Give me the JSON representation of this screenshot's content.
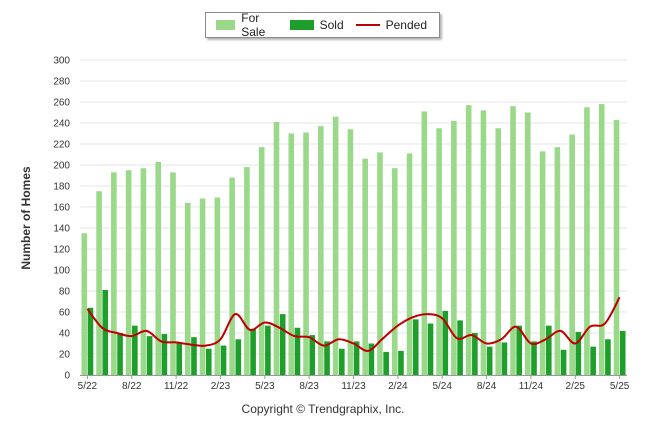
{
  "legend": {
    "for_sale": "For Sale",
    "sold": "Sold",
    "pended": "Pended"
  },
  "colors": {
    "for_sale": "#9ad98a",
    "sold": "#1e9e2a",
    "pended": "#c00000",
    "grid": "#e6e6e6",
    "axis_text": "#333333"
  },
  "ylabel": "Number of Homes",
  "copyright": "Copyright © Trendgraphix, Inc.",
  "chart_data": {
    "type": "bar",
    "title": "",
    "xlabel": "",
    "ylabel": "Number of Homes",
    "ylim": [
      0,
      300
    ],
    "yticks": [
      0,
      20,
      40,
      60,
      80,
      100,
      120,
      140,
      160,
      180,
      200,
      220,
      240,
      260,
      280,
      300
    ],
    "grid": true,
    "legend_position": "top-center",
    "categories": [
      "5/22",
      "6/22",
      "7/22",
      "8/22",
      "9/22",
      "10/22",
      "11/22",
      "12/22",
      "1/23",
      "2/23",
      "3/23",
      "4/23",
      "5/23",
      "6/23",
      "7/23",
      "8/23",
      "9/23",
      "10/23",
      "11/23",
      "12/23",
      "1/24",
      "2/24",
      "3/24",
      "4/24",
      "5/24",
      "6/24",
      "7/24",
      "8/24",
      "9/24",
      "10/24",
      "11/24",
      "12/24",
      "1/25",
      "2/25",
      "3/25",
      "4/25",
      "5/25"
    ],
    "tick_labels": [
      "5/22",
      "",
      "",
      "8/22",
      "",
      "",
      "11/22",
      "",
      "",
      "2/23",
      "",
      "",
      "5/23",
      "",
      "",
      "8/23",
      "",
      "",
      "11/23",
      "",
      "",
      "2/24",
      "",
      "",
      "5/24",
      "",
      "",
      "8/24",
      "",
      "",
      "11/24",
      "",
      "",
      "2/25",
      "",
      "",
      "5/25"
    ],
    "series": [
      {
        "name": "For Sale",
        "type": "bar",
        "values": [
          135,
          175,
          193,
          195,
          197,
          203,
          193,
          164,
          168,
          169,
          188,
          198,
          217,
          241,
          230,
          231,
          237,
          246,
          234,
          206,
          212,
          197,
          211,
          251,
          235,
          242,
          257,
          252,
          235,
          256,
          250,
          213,
          217,
          229,
          255,
          258,
          243
        ]
      },
      {
        "name": "Sold",
        "type": "bar",
        "values": [
          64,
          81,
          40,
          47,
          37,
          39,
          31,
          36,
          25,
          28,
          34,
          44,
          47,
          58,
          45,
          38,
          32,
          25,
          32,
          30,
          22,
          23,
          53,
          49,
          61,
          52,
          40,
          27,
          31,
          47,
          32,
          47,
          24,
          41,
          27,
          34,
          42
        ]
      },
      {
        "name": "Pended",
        "type": "line",
        "values": [
          63,
          45,
          40,
          37,
          42,
          32,
          31,
          29,
          28,
          34,
          58,
          43,
          50,
          45,
          37,
          36,
          28,
          34,
          30,
          23,
          35,
          47,
          55,
          58,
          54,
          35,
          38,
          30,
          34,
          46,
          30,
          34,
          42,
          30,
          46,
          49,
          74
        ]
      }
    ]
  }
}
